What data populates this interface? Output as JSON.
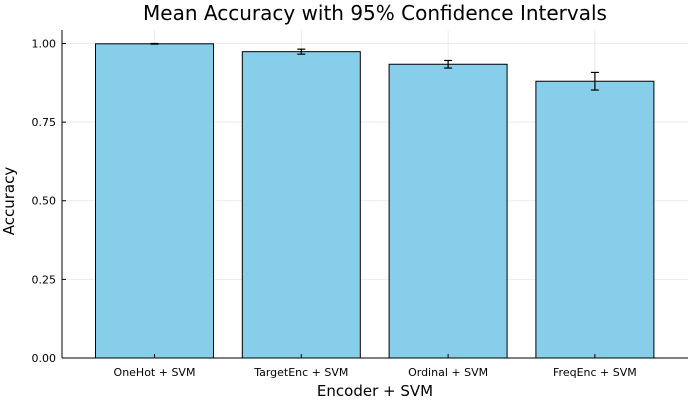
{
  "chart_data": {
    "type": "bar",
    "title": "Mean Accuracy with 95% Confidence Intervals",
    "xlabel": "Encoder + SVM",
    "ylabel": "Accuracy",
    "categories": [
      "OneHot + SVM",
      "TargetEnc + SVM",
      "Ordinal + SVM",
      "FreqEnc + SVM"
    ],
    "values": [
      0.999,
      0.974,
      0.934,
      0.88
    ],
    "ci_lower": [
      0.998,
      0.966,
      0.922,
      0.852
    ],
    "ci_upper": [
      1.0,
      0.982,
      0.946,
      0.908
    ],
    "ylim": [
      0,
      1.0429
    ],
    "yticks": [
      0.0,
      0.25,
      0.5,
      0.75,
      1.0
    ],
    "ytick_labels": [
      "0.00",
      "0.25",
      "0.50",
      "0.75",
      "1.00"
    ],
    "grid": true,
    "legend": "none",
    "colors": {
      "bar_fill": "#87CEEB",
      "bar_stroke": "#000000",
      "error_bar": "#000000",
      "grid": "#e6e6e6",
      "axis": "#000000",
      "text": "#000000"
    }
  }
}
